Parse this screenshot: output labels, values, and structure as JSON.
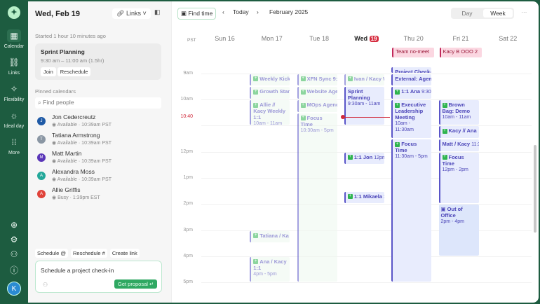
{
  "rail": {
    "items": [
      {
        "label": "Calendar",
        "icon": "calendar-icon",
        "active": true
      },
      {
        "label": "Links",
        "icon": "link-icon"
      },
      {
        "label": "Flexibility",
        "icon": "flexibility-icon"
      },
      {
        "label": "Ideal day",
        "icon": "sun-icon"
      },
      {
        "label": "More",
        "icon": "grid-icon"
      }
    ],
    "avatar": "K"
  },
  "left": {
    "date": "Wed, Feb 19",
    "links": "Links",
    "started": "Started 1 hour 10 minutes ago",
    "current": {
      "title": "Sprint Planning",
      "time": "9:30 am – 11:00 am (1.5hr)",
      "join": "Join",
      "reschedule": "Reschedule"
    },
    "pinned_label": "Pinned calendars",
    "find_placeholder": "Find people",
    "people": [
      {
        "initial": "J",
        "name": "Jon Cedercreutz",
        "status": "Available · 10:39am PST",
        "color": "#1f5aa6"
      },
      {
        "initial": "T",
        "name": "Tatiana Armstrong",
        "status": "Available · 10:39am PST",
        "color": "#8a96a3"
      },
      {
        "initial": "M",
        "name": "Matt Martin",
        "status": "Available · 10:39am PST",
        "color": "#5a36b8"
      },
      {
        "initial": "A",
        "name": "Alexandra Moss",
        "status": "Available · 10:39am PST",
        "color": "#23a89a"
      },
      {
        "initial": "A",
        "name": "Allie Griffis",
        "status": "Busy · 1:39pm EST",
        "color": "#e0433a"
      }
    ],
    "chips": [
      "Schedule @",
      "Reschedule #",
      "Create link"
    ],
    "composer": {
      "text": "Schedule a project check-in",
      "button": "Get proposal"
    }
  },
  "toolbar": {
    "find_time": "Find time",
    "today": "Today",
    "month": "February 2025",
    "views": [
      "Day",
      "Week"
    ],
    "active_view": "Week"
  },
  "calendar": {
    "timezone": "PST",
    "now_label": "10:40",
    "now_hour": 10.667,
    "today_index": 3,
    "days": [
      {
        "name": "Sun",
        "num": "16"
      },
      {
        "name": "Mon",
        "num": "17"
      },
      {
        "name": "Tue",
        "num": "18"
      },
      {
        "name": "Wed",
        "num": "19"
      },
      {
        "name": "Thu",
        "num": "20"
      },
      {
        "name": "Fri",
        "num": "21"
      },
      {
        "name": "Sat",
        "num": "22"
      }
    ],
    "hours": [
      {
        "h": 9,
        "label": "9am"
      },
      {
        "h": 10,
        "label": "10am"
      },
      {
        "h": 11,
        "label": "11am"
      },
      {
        "h": 12,
        "label": "12pm"
      },
      {
        "h": 13,
        "label": "1pm"
      },
      {
        "h": 14,
        "label": "2pm"
      },
      {
        "h": 15,
        "label": "3pm"
      },
      {
        "h": 16,
        "label": "4pm"
      },
      {
        "h": 17,
        "label": "5pm"
      }
    ],
    "allday": [
      {
        "day": 4,
        "title": "Team no-meet"
      },
      {
        "day": 5,
        "title": "Kacy B OOO 2"
      }
    ],
    "events": [
      {
        "day": 1,
        "start": 9,
        "end": 9.5,
        "title": "Weekly Kick",
        "past": true,
        "icon": true
      },
      {
        "day": 1,
        "start": 9.5,
        "end": 10,
        "title": "Growth Stan",
        "past": true,
        "icon": true
      },
      {
        "day": 1,
        "start": 10,
        "end": 11,
        "title": "Allie // Kacy Weekly 1:1",
        "time": "10am - 11am",
        "past": true,
        "icon": true
      },
      {
        "day": 1,
        "start": 15,
        "end": 15.5,
        "title": "Tatiana / Ka",
        "past": true,
        "icon": true
      },
      {
        "day": 1,
        "start": 16,
        "end": 17,
        "title": "Ana / Kacy 1:1",
        "time": "4pm - 5pm",
        "past": true,
        "icon": true
      },
      {
        "day": 2,
        "start": 9,
        "end": 9.5,
        "title": "XFN Sync 9:",
        "past": true,
        "icon": true
      },
      {
        "day": 2,
        "start": 9.5,
        "end": 10,
        "title": "Website Age",
        "past": true,
        "icon": true
      },
      {
        "day": 2,
        "start": 10,
        "end": 10.5,
        "title": "MOps Agenc",
        "past": true,
        "icon": true
      },
      {
        "day": 2,
        "start": 10.5,
        "end": 17,
        "title": "Focus Time",
        "time": "10:30am - 5pm",
        "past": true,
        "icon": true
      },
      {
        "day": 3,
        "start": 9,
        "end": 9.5,
        "title": "Ivan / Kacy W",
        "past": true,
        "icon": true
      },
      {
        "day": 3,
        "start": 9.5,
        "end": 11,
        "title": "Sprint Planning",
        "time": "9:30am - 11am"
      },
      {
        "day": 3,
        "start": 12,
        "end": 12.5,
        "title": "1:1 Jon",
        "sub": "12pm",
        "icon": true
      },
      {
        "day": 3,
        "start": 13.5,
        "end": 14,
        "title": "1:1 Mikaela 1",
        "icon": true
      },
      {
        "day": 4,
        "start": 8.75,
        "end": 9,
        "title": "Project Check-"
      },
      {
        "day": 4,
        "start": 9,
        "end": 9.5,
        "title": "External: Agenc"
      },
      {
        "day": 4,
        "start": 9.5,
        "end": 10,
        "title": "1:1 Ana",
        "sub": "9:30",
        "icon": true
      },
      {
        "day": 4,
        "start": 10,
        "end": 11.5,
        "title": "Executive Leadership Meeting",
        "time": "10am - 11:30am",
        "icon": true
      },
      {
        "day": 4,
        "start": 11.5,
        "end": 17,
        "title": "Focus Time",
        "time": "11:30am - 5pm",
        "icon": true
      },
      {
        "day": 5,
        "start": 10,
        "end": 11,
        "title": "Brown Bag: Demo",
        "time": "10am - 11am",
        "icon": true
      },
      {
        "day": 5,
        "start": 11,
        "end": 11.5,
        "title": "Kacy // Ana",
        "icon": true
      },
      {
        "day": 5,
        "start": 11.5,
        "end": 12,
        "title": "Matt / Kacy",
        "sub": "11:3"
      },
      {
        "day": 5,
        "start": 12,
        "end": 14,
        "title": "Focus Time",
        "time": "12pm - 2pm",
        "icon": true
      },
      {
        "day": 5,
        "start": 14,
        "end": 16,
        "title": "Out of Office",
        "time": "2pm - 4pm",
        "ooo": true
      }
    ]
  }
}
